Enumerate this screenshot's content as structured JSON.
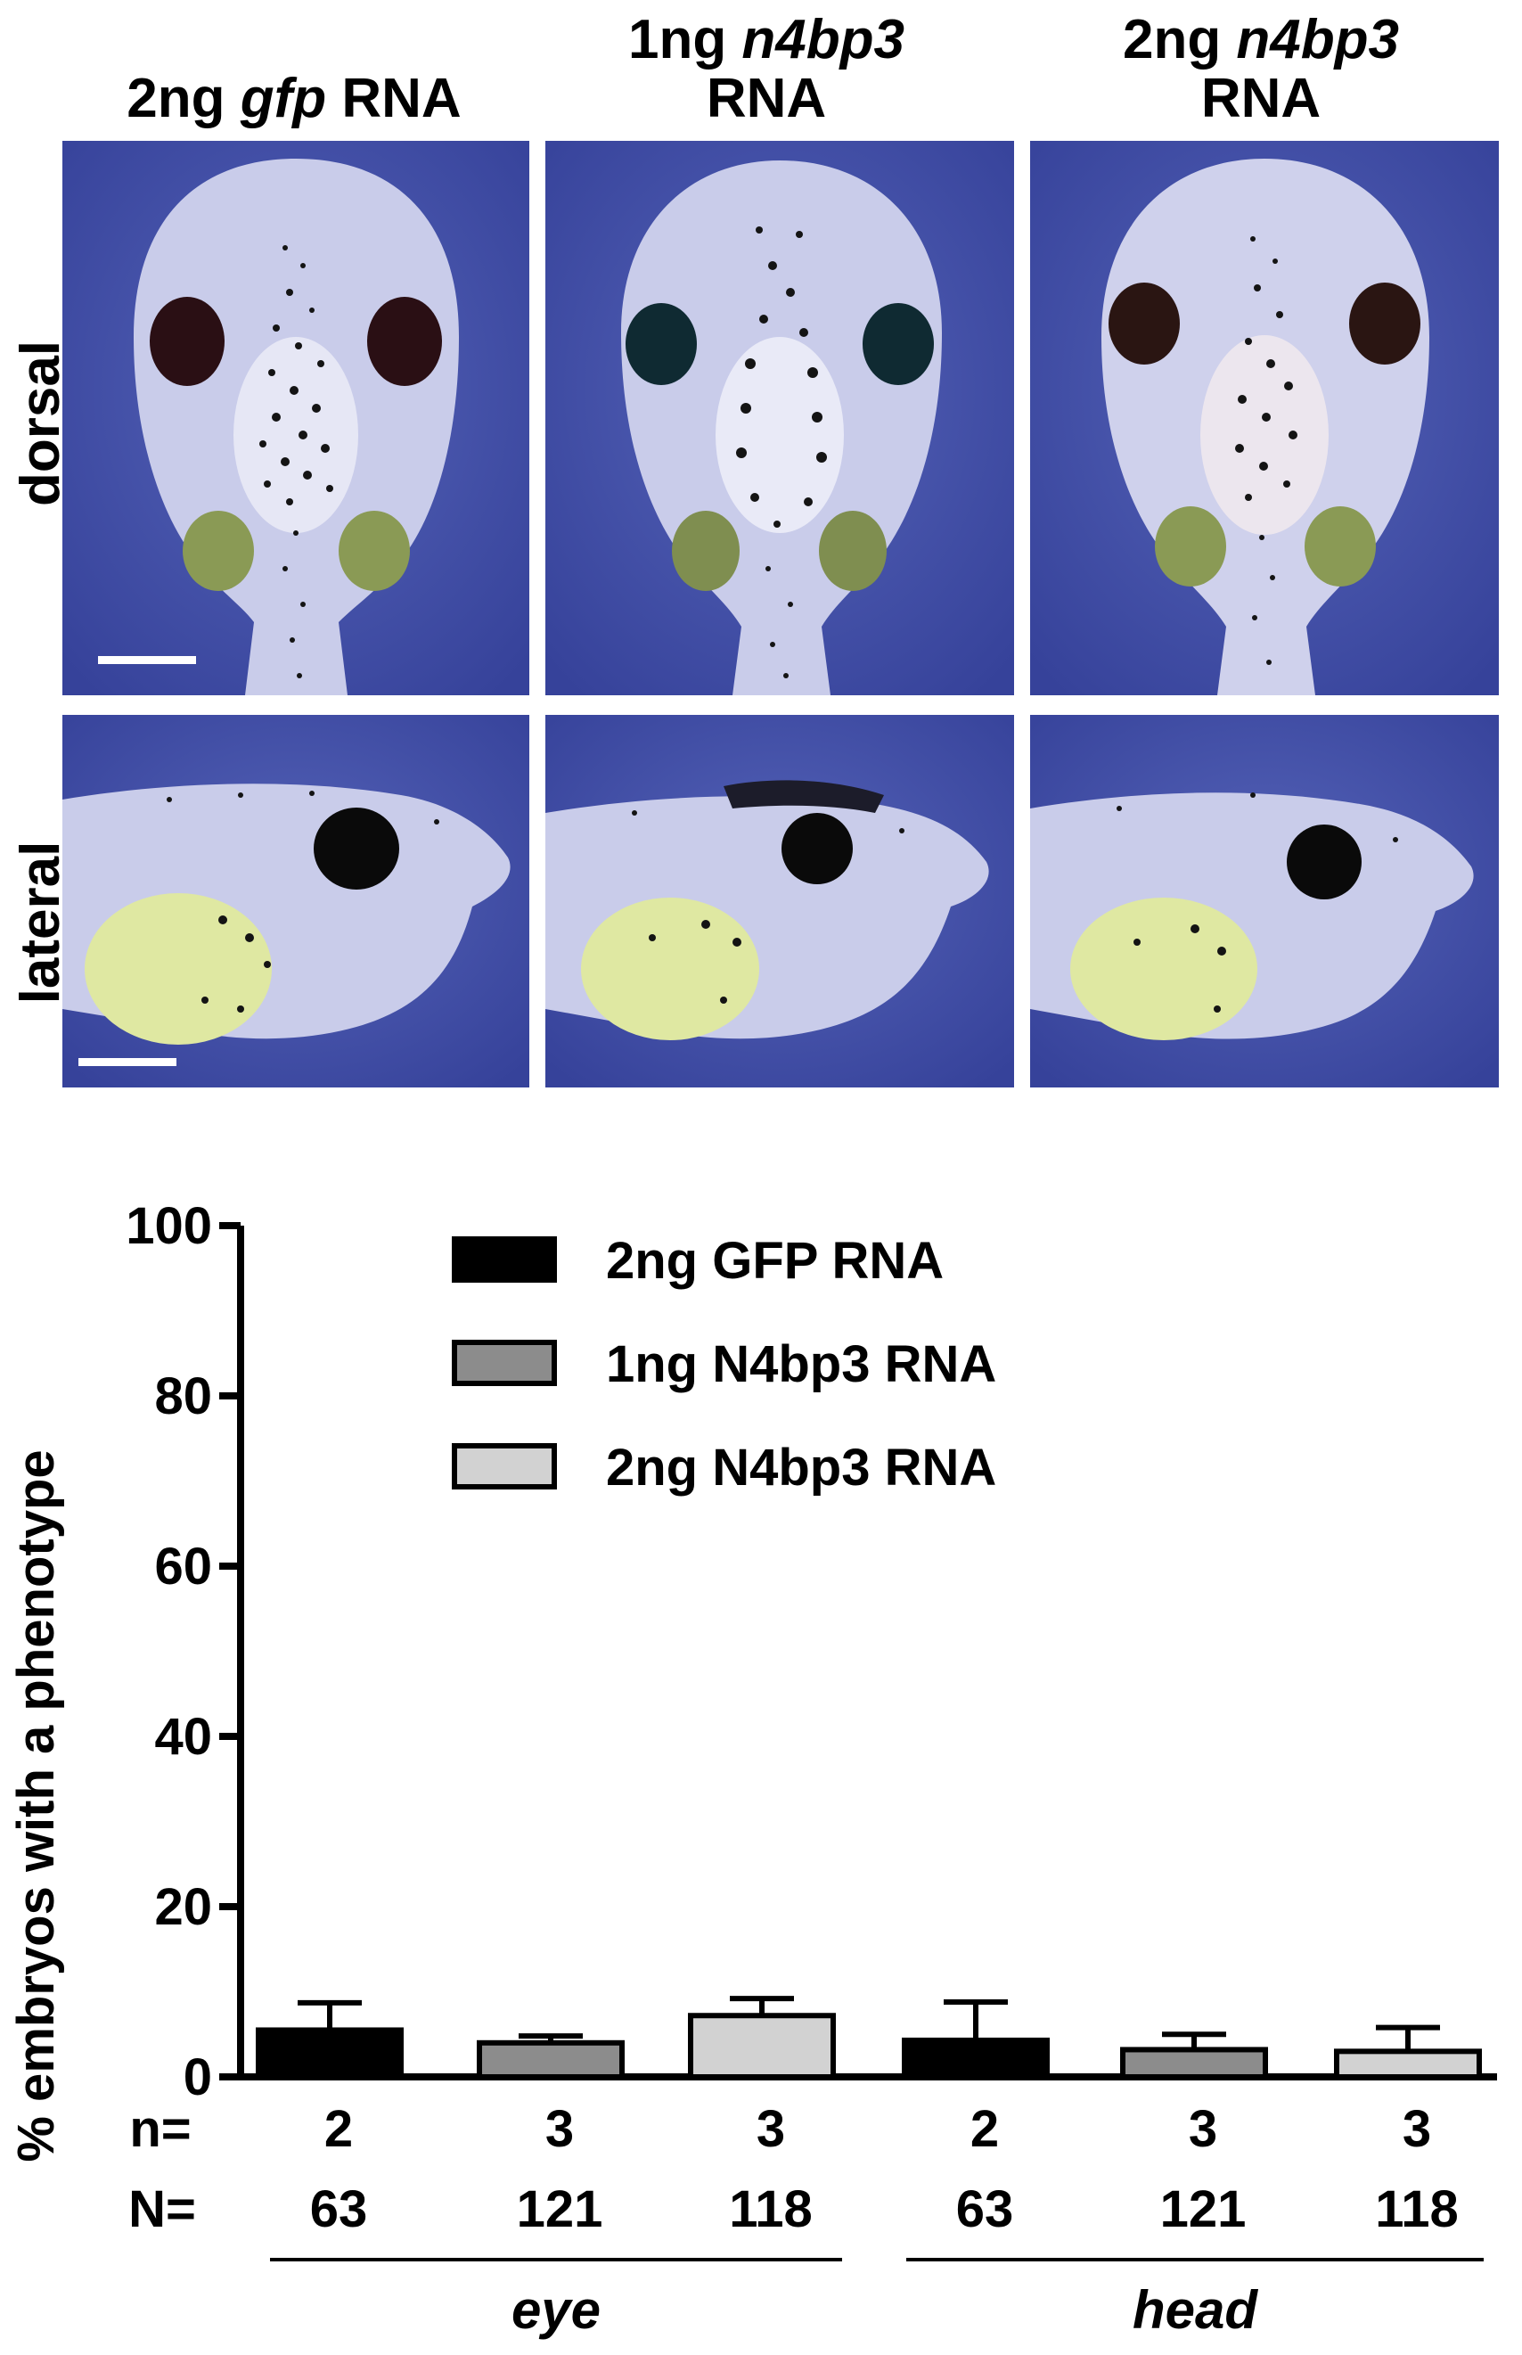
{
  "figure": {
    "columns": [
      {
        "pre": "2ng ",
        "italic": "gfp",
        "post": " RNA",
        "line2": ""
      },
      {
        "pre": "1ng ",
        "italic": "n4bp3",
        "post": "",
        "line2": "RNA"
      },
      {
        "pre": "2ng ",
        "italic": "n4bp3",
        "post": "",
        "line2": "RNA"
      }
    ],
    "rows": {
      "dorsal": "dorsal",
      "lateral": "lateral"
    }
  },
  "colors": {
    "gfp": "#000000",
    "n4bp3_1ng": "#8c8c8c",
    "n4bp3_2ng": "#d2d2d2",
    "background": "#3f4fa8"
  },
  "chart_data": {
    "type": "bar",
    "title": "",
    "xlabel": "",
    "ylabel": "% embryos with a phenotype",
    "ylim": [
      0,
      100
    ],
    "yticks": [
      "0",
      "20",
      "40",
      "60",
      "80",
      "100"
    ],
    "legend_position": "top-right",
    "series": [
      {
        "name": "2ng GFP RNA",
        "values": [
          5.5,
          4.3
        ],
        "errors": [
          3.2,
          4.5
        ]
      },
      {
        "name": "1ng N4bp3 RNA",
        "values": [
          4.0,
          3.2
        ],
        "errors": [
          0.8,
          1.8
        ]
      },
      {
        "name": "2ng N4bp3 RNA",
        "values": [
          7.2,
          3.0
        ],
        "errors": [
          2.0,
          2.8
        ]
      }
    ],
    "groups": [
      "eye",
      "head"
    ],
    "n_label": "n=",
    "N_label": "N=",
    "n_values": [
      "2",
      "3",
      "3",
      "2",
      "3",
      "3"
    ],
    "N_values": [
      "63",
      "121",
      "118",
      "63",
      "121",
      "118"
    ]
  }
}
